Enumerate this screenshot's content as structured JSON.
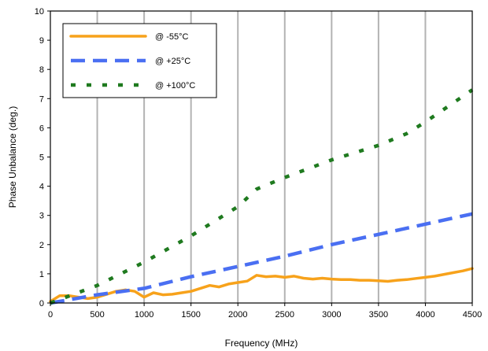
{
  "chart_data": {
    "type": "line",
    "title": "",
    "xlabel": "Frequency (MHz)",
    "ylabel": "Phase Unbalance (deg.)",
    "xlim": [
      0,
      4500
    ],
    "ylim": [
      0,
      10
    ],
    "x_ticks": [
      "0",
      "500",
      "1000",
      "1500",
      "2000",
      "2500",
      "3000",
      "3500",
      "4000",
      "4500"
    ],
    "y_ticks": [
      "0",
      "1",
      "2",
      "3",
      "4",
      "5",
      "6",
      "7",
      "8",
      "9",
      "10"
    ],
    "grid": "vertical",
    "legend_position": "top-left",
    "series": [
      {
        "name": "@ -55°C",
        "color": "#f7a21b",
        "style": "solid",
        "x": [
          0,
          100,
          200,
          300,
          400,
          500,
          600,
          700,
          800,
          900,
          1000,
          1100,
          1200,
          1300,
          1400,
          1500,
          1600,
          1700,
          1800,
          1900,
          2000,
          2100,
          2200,
          2300,
          2400,
          2500,
          2600,
          2700,
          2800,
          2900,
          3000,
          3100,
          3200,
          3300,
          3400,
          3500,
          3600,
          3700,
          3800,
          3900,
          4000,
          4100,
          4200,
          4300,
          4400,
          4500
        ],
        "y": [
          0.05,
          0.25,
          0.25,
          0.2,
          0.15,
          0.2,
          0.3,
          0.4,
          0.45,
          0.4,
          0.2,
          0.35,
          0.28,
          0.3,
          0.35,
          0.4,
          0.5,
          0.6,
          0.55,
          0.65,
          0.7,
          0.75,
          0.95,
          0.9,
          0.92,
          0.88,
          0.92,
          0.85,
          0.82,
          0.85,
          0.82,
          0.8,
          0.8,
          0.78,
          0.78,
          0.76,
          0.74,
          0.78,
          0.8,
          0.84,
          0.88,
          0.92,
          0.98,
          1.04,
          1.1,
          1.18
        ]
      },
      {
        "name": "@ +25°C",
        "color": "#4a6ff2",
        "style": "dashed",
        "x": [
          0,
          500,
          1000,
          1500,
          2000,
          2500,
          3000,
          3500,
          4000,
          4500
        ],
        "y": [
          0.0,
          0.28,
          0.5,
          0.9,
          1.25,
          1.6,
          2.0,
          2.35,
          2.7,
          3.05
        ]
      },
      {
        "name": "@ +100°C",
        "color": "#1f7a1f",
        "style": "dotted",
        "x": [
          0,
          500,
          1000,
          1500,
          2000,
          2200,
          2500,
          3000,
          3500,
          3800,
          4000,
          4500
        ],
        "y": [
          0.0,
          0.6,
          1.4,
          2.3,
          3.3,
          3.9,
          4.3,
          4.9,
          5.4,
          5.8,
          6.2,
          7.3
        ]
      }
    ]
  }
}
